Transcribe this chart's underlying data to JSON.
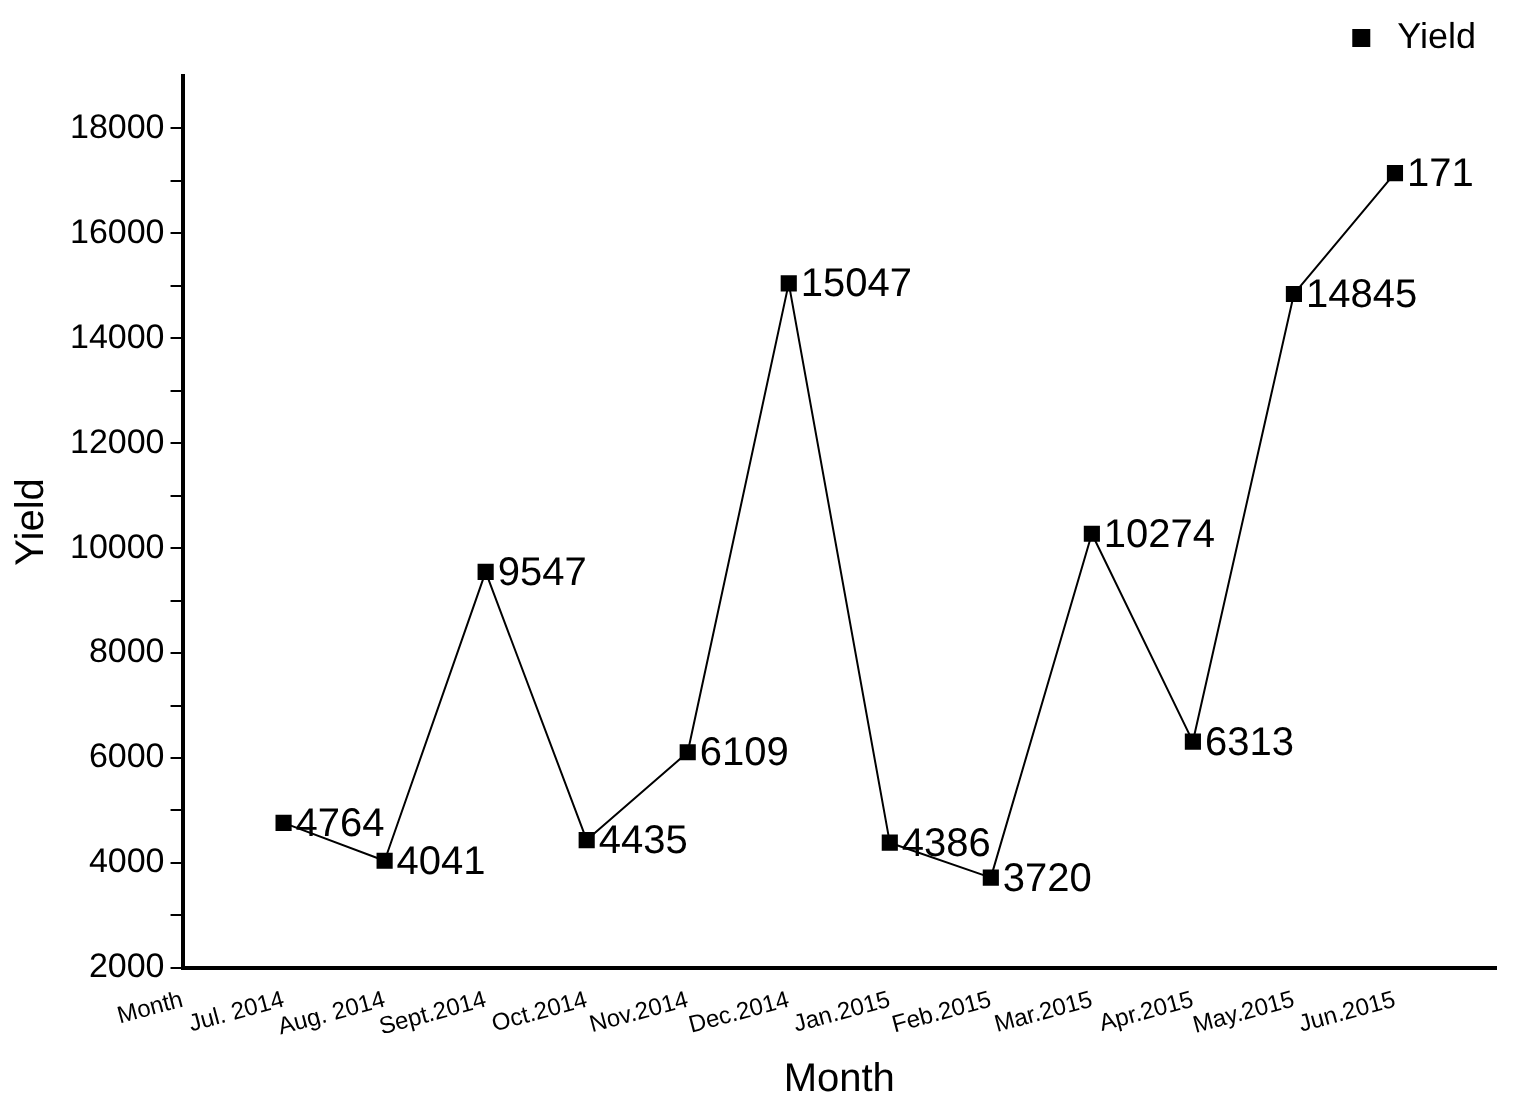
{
  "chart_data": {
    "type": "line",
    "xlabel": "Month",
    "ylabel": "Yield",
    "categories": [
      "Month",
      "Jul. 2014",
      "Aug. 2014",
      "Sept.2014",
      "Oct.2014",
      "Nov.2014",
      "Dec.2014",
      "Jan.2015",
      "Feb.2015",
      "Mar.2015",
      "Apr.2015",
      "May.2015",
      "Jun.2015",
      null
    ],
    "series": [
      {
        "name": "Yield",
        "color": "#000000",
        "values": [
          null,
          4764,
          4041,
          9547,
          4435,
          6109,
          15047,
          4386,
          3720,
          10274,
          6313,
          14845,
          17150,
          null
        ],
        "value_labels": [
          null,
          "4764",
          "4041",
          "9547",
          "4435",
          "6109",
          "15047",
          "4386",
          "3720",
          "10274",
          "6313",
          "14845",
          null,
          null
        ]
      }
    ],
    "annotations": [
      {
        "text": "171",
        "x": "Jun.2015",
        "y": 17150
      }
    ],
    "ylim": [
      2000,
      19000
    ],
    "yticks": [
      2000,
      {
        "value": 3000,
        "label": null
      },
      4000,
      {
        "value": 5000,
        "label": null
      },
      6000,
      {
        "value": 7000,
        "label": null
      },
      8000,
      {
        "value": 9000,
        "label": null
      },
      10000,
      {
        "value": 11000,
        "label": null
      },
      12000,
      {
        "value": 13000,
        "label": null
      },
      14000,
      {
        "value": 15000,
        "label": null
      },
      16000,
      {
        "value": 17000,
        "label": null
      },
      18000
    ],
    "grid": false,
    "legend": "top right",
    "marker": "square",
    "line_style": "solid"
  }
}
